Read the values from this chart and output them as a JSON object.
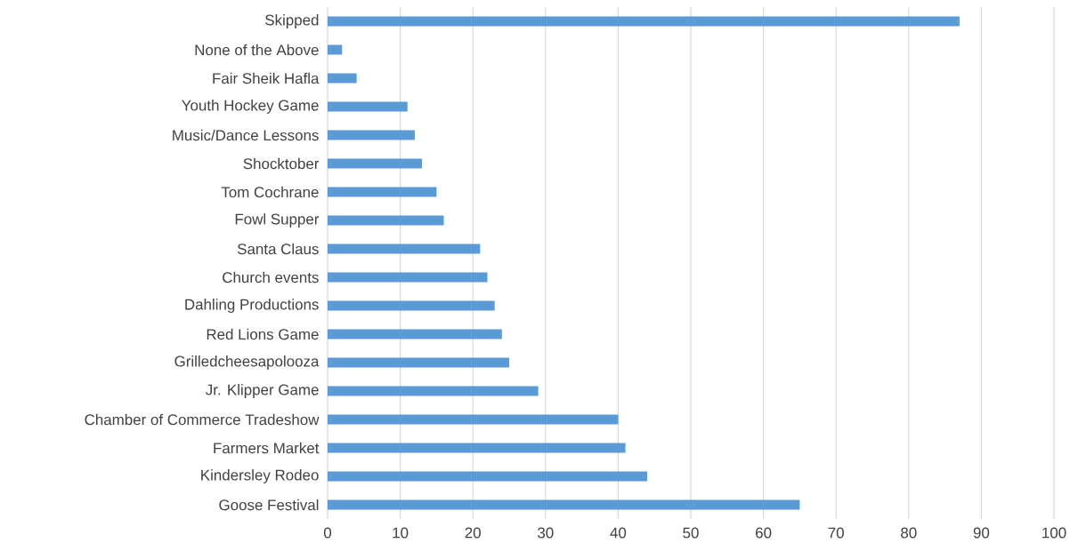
{
  "chart_data": {
    "type": "bar",
    "orientation": "horizontal",
    "categories": [
      "Skipped",
      "None of the Above",
      "Fair Sheik Hafla",
      "Youth Hockey Game",
      "Music/Dance Lessons",
      "Shocktober",
      "Tom Cochrane",
      "Fowl Supper",
      "Santa Claus",
      "Church events",
      "Dahling Productions",
      "Red Lions Game",
      "Grilledcheesapolooza",
      "Jr. Klipper Game",
      "Chamber of Commerce Tradeshow",
      "Farmers Market",
      "Kindersley Rodeo",
      "Goose Festival"
    ],
    "values": [
      87,
      2,
      4,
      11,
      12,
      13,
      15,
      16,
      21,
      22,
      23,
      24,
      25,
      29,
      40,
      41,
      44,
      65
    ],
    "color": "#5b9bd5",
    "xlim": [
      0,
      100
    ],
    "xticks": [
      0,
      10,
      20,
      30,
      40,
      50,
      60,
      70,
      80,
      90,
      100
    ],
    "grid": "x"
  }
}
